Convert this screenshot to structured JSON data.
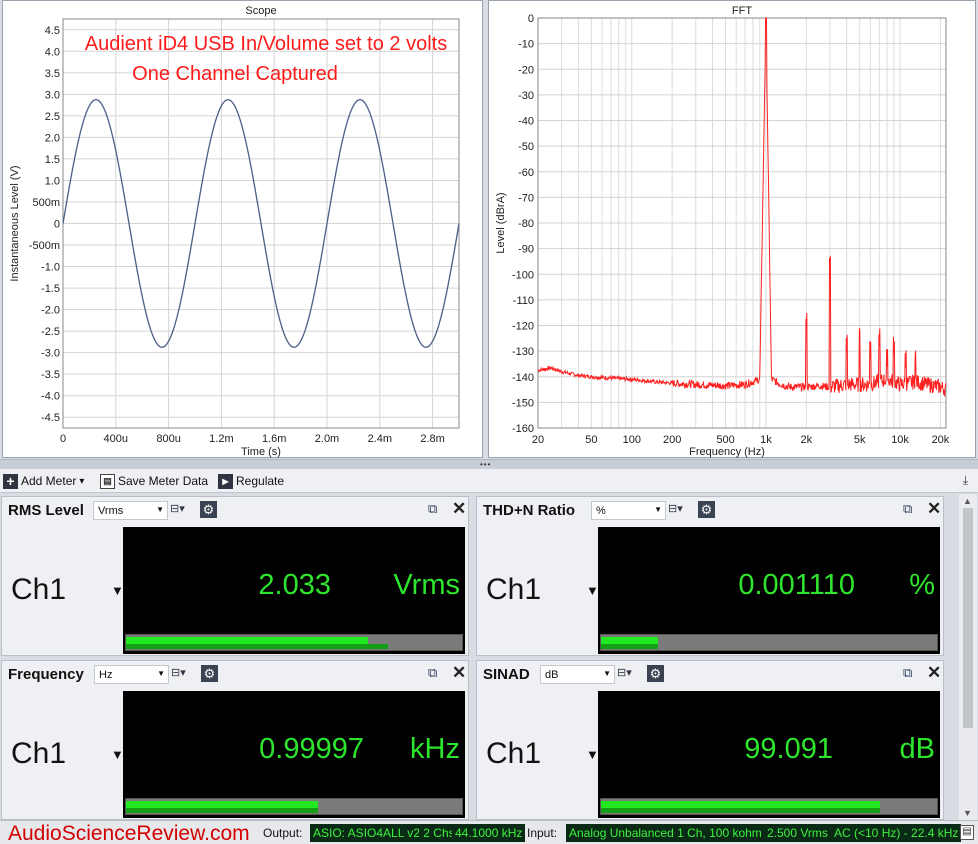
{
  "scope": {
    "title": "Scope",
    "xlabel": "Time (s)",
    "ylabel": "Instantaneous Level (V)",
    "x_ticks": [
      "0",
      "400u",
      "800u",
      "1.2m",
      "1.6m",
      "2.0m",
      "2.4m",
      "2.8m"
    ],
    "y_ticks": [
      "4.5",
      "4.0",
      "3.5",
      "3.0",
      "2.5",
      "2.0",
      "1.5",
      "1.0",
      "500m",
      "0",
      "-500m",
      "-1.0",
      "-1.5",
      "-2.0",
      "-2.5",
      "-3.0",
      "-3.5",
      "-4.0",
      "-4.5"
    ],
    "annotation_line1": "Audient iD4 USB In/Volume set to 2 volts",
    "annotation_line2": "One Channel Captured",
    "line_color": "#4a5f86"
  },
  "fft": {
    "title": "FFT",
    "xlabel": "Frequency (Hz)",
    "ylabel": "Level (dBrA)",
    "x_ticks": [
      "20",
      "50",
      "100",
      "200",
      "500",
      "1k",
      "2k",
      "5k",
      "10k",
      "20k"
    ],
    "y_ticks": [
      "0",
      "-10",
      "-20",
      "-30",
      "-40",
      "-50",
      "-60",
      "-70",
      "-80",
      "-90",
      "-100",
      "-110",
      "-120",
      "-130",
      "-140",
      "-150",
      "-160"
    ],
    "line_color": "#ff2020"
  },
  "chart_data": [
    {
      "type": "line",
      "title": "Scope",
      "xlabel": "Time (s)",
      "ylabel": "Instantaneous Level (V)",
      "xlim": [
        0,
        0.003
      ],
      "ylim": [
        -4.75,
        4.75
      ],
      "series": [
        {
          "waveform": "sine",
          "frequency_hz": 999.97,
          "amplitude_v": 2.875,
          "x_start_s": 0,
          "x_end_s": 0.003
        }
      ]
    },
    {
      "type": "line",
      "title": "FFT",
      "xlabel": "Frequency (Hz)",
      "ylabel": "Level (dBrA)",
      "xscale": "log",
      "xlim": [
        20,
        22000
      ],
      "ylim": [
        -160,
        0
      ],
      "series": [
        {
          "x": [
            20,
            25,
            30,
            40,
            50,
            70,
            100,
            150,
            200,
            300,
            500,
            700,
            900,
            1000,
            1100,
            1300,
            1500,
            1999,
            2000,
            2001,
            2500,
            2999,
            3000,
            3001,
            4000,
            4999,
            5000,
            5001,
            6000,
            7000,
            8000,
            9000,
            10000,
            13000,
            16000,
            20000,
            22000
          ],
          "y": [
            -137.5,
            -136.5,
            -138,
            -139.5,
            -140,
            -140.5,
            -141,
            -142,
            -142.5,
            -143,
            -143.5,
            -143,
            -141,
            0,
            -141,
            -143,
            -144,
            -144,
            -123,
            -144,
            -143.5,
            -144,
            -100,
            -144,
            -143,
            -143,
            -125,
            -143,
            -143,
            -142,
            -141,
            -142,
            -143,
            -142,
            -143,
            -144,
            -145
          ]
        }
      ]
    }
  ],
  "toolbar": {
    "add_meter": "Add Meter",
    "add_meter_caret": "▾",
    "save_meter_data": "Save Meter Data",
    "regulate": "Regulate"
  },
  "meters": {
    "rms": {
      "title": "RMS Level",
      "unit_select": "Vrms",
      "channel": "Ch1",
      "value": "2.033",
      "unit": "Vrms",
      "bar_fraction": 0.72
    },
    "thdn": {
      "title": "THD+N Ratio",
      "unit_select": "%",
      "channel": "Ch1",
      "value": "0.001110",
      "unit": "%",
      "bar_fraction": 0.17
    },
    "freq": {
      "title": "Frequency",
      "unit_select": "Hz",
      "channel": "Ch1",
      "value": "0.99997",
      "unit": "kHz",
      "bar_fraction": 0.57
    },
    "sinad": {
      "title": "SINAD",
      "unit_select": "dB",
      "channel": "Ch1",
      "value": "99.091",
      "unit": "dB",
      "bar_fraction": 0.83
    }
  },
  "status": {
    "watermark": "AudioScienceReview.com",
    "output_label": "Output:",
    "output_device": "ASIO: ASIO4ALL v2 2 Chs",
    "output_rate": "44.1000 kHz",
    "input_label": "Input:",
    "input_device": "Analog Unbalanced 1 Ch, 100 kohm",
    "input_range": "2.500 Vrms",
    "input_filter": "AC (<10 Hz) - 22.4 kHz"
  },
  "icons": {
    "add": "plus-icon",
    "save": "save-icon",
    "regulate": "play-icon",
    "graph": "graph-icon",
    "gear": "gear-icon",
    "popout": "popout-icon",
    "close": "close-icon"
  }
}
